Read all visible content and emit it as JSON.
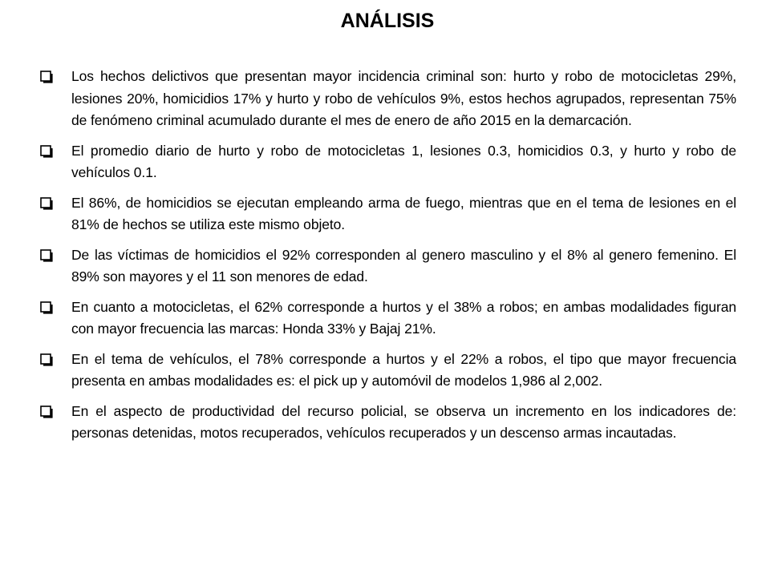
{
  "title": "ANÁLISIS",
  "bullets": [
    "Los hechos delictivos que presentan mayor incidencia criminal son: hurto y robo de motocicletas 29%, lesiones 20%, homicidios 17% y hurto y robo de vehículos 9%, estos hechos agrupados, representan 75% de fenómeno criminal acumulado durante el mes de enero de año 2015 en la demarcación.",
    "El promedio diario de hurto y robo de motocicletas 1, lesiones 0.3, homicidios 0.3, y hurto y robo de vehículos 0.1.",
    "El 86%, de homicidios se ejecutan empleando arma de fuego, mientras que en el tema de lesiones en el 81% de hechos se utiliza este mismo objeto.",
    "De las víctimas de homicidios el 92% corresponden al genero masculino y el 8% al genero femenino. El 89% son mayores y el 11 son menores de edad.",
    "En cuanto a motocicletas, el 62% corresponde a hurtos y el 38% a robos; en ambas modalidades figuran con mayor frecuencia las marcas: Honda 33% y Bajaj 21%.",
    "En el tema de vehículos, el 78% corresponde a hurtos y el 22% a robos, el tipo que mayor frecuencia presenta en ambas modalidades es: el pick up y automóvil de modelos 1,986 al 2,002.",
    "En el aspecto de productividad del recurso policial, se observa un incremento en los indicadores de: personas detenidas, motos recuperados, vehículos recuperados y un descenso armas incautadas."
  ],
  "bullet_icon": "checkbox-icon"
}
